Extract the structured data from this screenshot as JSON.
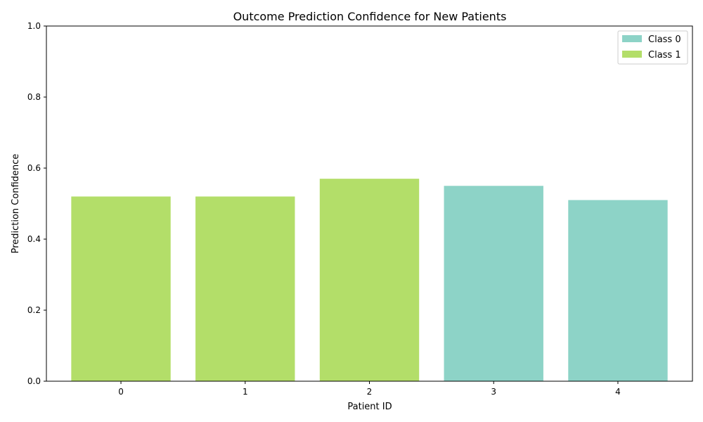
{
  "chart_data": {
    "type": "bar",
    "title": "Outcome Prediction Confidence for New Patients",
    "xlabel": "Patient ID",
    "ylabel": "Prediction Confidence",
    "categories": [
      "0",
      "1",
      "2",
      "3",
      "4"
    ],
    "values": [
      0.52,
      0.52,
      0.57,
      0.55,
      0.51
    ],
    "predicted_class": [
      1,
      1,
      1,
      0,
      0
    ],
    "ylim": [
      0,
      1.0
    ],
    "yticks": [
      "0.0",
      "0.2",
      "0.4",
      "0.6",
      "0.8",
      "1.0"
    ],
    "grid": false,
    "legend": {
      "placement": "top-right",
      "entries": [
        {
          "label": "Class 0",
          "color": "#8dd3c7"
        },
        {
          "label": "Class 1",
          "color": "#b3de69"
        }
      ]
    }
  }
}
